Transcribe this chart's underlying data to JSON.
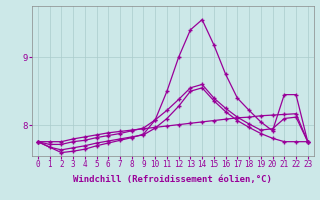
{
  "background_color": "#cce8e8",
  "grid_color": "#aacccc",
  "line_color": "#990099",
  "xlabel": "Windchill (Refroidissement éolien,°C)",
  "xlim": [
    -0.5,
    23.5
  ],
  "ylim": [
    7.55,
    9.75
  ],
  "yticks": [
    8,
    9
  ],
  "xticks": [
    0,
    1,
    2,
    3,
    4,
    5,
    6,
    7,
    8,
    9,
    10,
    11,
    12,
    13,
    14,
    15,
    16,
    17,
    18,
    19,
    20,
    21,
    22,
    23
  ],
  "series1_x": [
    0,
    1,
    2,
    3,
    4,
    5,
    6,
    7,
    8,
    9,
    10,
    11,
    12,
    13,
    14,
    15,
    16,
    17,
    18,
    19,
    20,
    21,
    22,
    23
  ],
  "series1_y": [
    7.76,
    7.76,
    7.76,
    7.8,
    7.83,
    7.86,
    7.89,
    7.91,
    7.93,
    7.95,
    7.97,
    7.99,
    8.01,
    8.03,
    8.05,
    8.07,
    8.09,
    8.11,
    8.12,
    8.14,
    8.15,
    8.16,
    8.17,
    7.76
  ],
  "series2_x": [
    0,
    1,
    2,
    3,
    4,
    5,
    6,
    7,
    8,
    9,
    10,
    11,
    12,
    13,
    14,
    15,
    16,
    17,
    18,
    19,
    20,
    21,
    22,
    23
  ],
  "series2_y": [
    7.76,
    7.68,
    7.64,
    7.67,
    7.7,
    7.74,
    7.77,
    7.8,
    7.83,
    7.86,
    7.96,
    8.1,
    8.28,
    8.5,
    8.55,
    8.36,
    8.2,
    8.07,
    7.97,
    7.88,
    7.81,
    7.76,
    7.76,
    7.76
  ],
  "series3_x": [
    0,
    1,
    2,
    3,
    4,
    5,
    6,
    7,
    8,
    9,
    10,
    11,
    12,
    13,
    14,
    15,
    16,
    17,
    18,
    19,
    20,
    21,
    22,
    23
  ],
  "series3_y": [
    7.76,
    7.72,
    7.72,
    7.76,
    7.78,
    7.82,
    7.85,
    7.88,
    7.92,
    7.96,
    8.08,
    8.22,
    8.38,
    8.55,
    8.6,
    8.4,
    8.25,
    8.12,
    8.02,
    7.93,
    7.95,
    8.1,
    8.12,
    7.76
  ],
  "series4_x": [
    0,
    2,
    3,
    4,
    5,
    6,
    7,
    8,
    9,
    10,
    11,
    12,
    13,
    14,
    15,
    16,
    17,
    18,
    19,
    20,
    21,
    22,
    23
  ],
  "series4_y": [
    7.76,
    7.6,
    7.62,
    7.65,
    7.7,
    7.74,
    7.78,
    7.82,
    7.87,
    8.08,
    8.5,
    9.0,
    9.4,
    9.55,
    9.18,
    8.75,
    8.4,
    8.22,
    8.05,
    7.92,
    8.45,
    8.45,
    7.76
  ],
  "marker": "+",
  "markersize": 3,
  "linewidth": 0.9,
  "tick_fontsize": 5.5,
  "axis_fontsize": 6.5
}
